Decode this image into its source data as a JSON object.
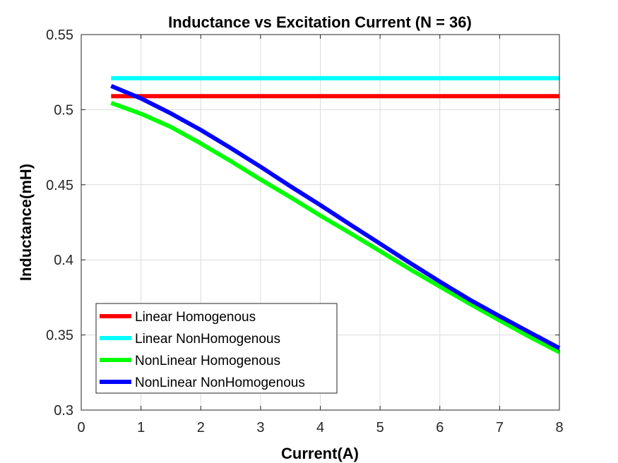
{
  "chart_data": {
    "type": "line",
    "title": "Inductance vs Excitation Current (N = 36)",
    "xlabel": "Current(A)",
    "ylabel": "Inductance(mH)",
    "xlim": [
      0,
      8
    ],
    "ylim": [
      0.3,
      0.55
    ],
    "xticks": [
      "0",
      "1",
      "2",
      "3",
      "4",
      "5",
      "6",
      "7",
      "8"
    ],
    "yticks": [
      "0.3",
      "0.35",
      "0.4",
      "0.45",
      "0.5",
      "0.55"
    ],
    "grid": true,
    "legend_position": "bottom-left",
    "series": [
      {
        "name": "Linear Homogenous",
        "color": "#ff0000",
        "x": [
          0.5,
          8
        ],
        "y": [
          0.509,
          0.509
        ]
      },
      {
        "name": "Linear NonHomogenous",
        "color": "#00ffff",
        "x": [
          0.5,
          8
        ],
        "y": [
          0.521,
          0.521
        ]
      },
      {
        "name": "NonLinear Homogenous",
        "color": "#00ff00",
        "x": [
          0.5,
          1,
          1.5,
          2,
          2.5,
          3,
          3.5,
          4,
          4.5,
          5,
          5.5,
          6,
          6.5,
          7,
          7.5,
          8
        ],
        "y": [
          0.5045,
          0.4973,
          0.4885,
          0.4775,
          0.4658,
          0.4535,
          0.4417,
          0.4295,
          0.4178,
          0.4058,
          0.3938,
          0.3822,
          0.3708,
          0.3597,
          0.3488,
          0.3385
        ]
      },
      {
        "name": "NonLinear NonHomogenous",
        "color": "#0000ff",
        "x": [
          0.5,
          1,
          1.5,
          2,
          2.5,
          3,
          3.5,
          4,
          4.5,
          5,
          5.5,
          6,
          6.5,
          7,
          7.5,
          8
        ],
        "y": [
          0.5158,
          0.5075,
          0.4975,
          0.4865,
          0.4745,
          0.462,
          0.449,
          0.4365,
          0.4235,
          0.4108,
          0.398,
          0.3855,
          0.3735,
          0.3625,
          0.3518,
          0.3412
        ]
      }
    ]
  }
}
